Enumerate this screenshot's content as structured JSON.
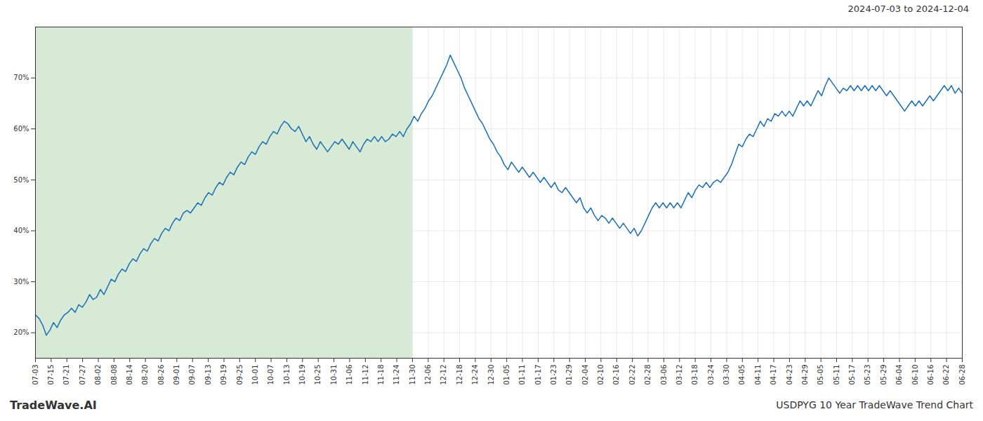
{
  "chart_data": {
    "type": "line",
    "title": "USDPYG 10 Year TradeWave Trend Chart",
    "subtitle": "2024-07-03 to 2024-12-04",
    "caption": "TradeWave.AI",
    "color": "#1a6fb5",
    "grid": true,
    "shade": {
      "x": [
        0,
        24
      ],
      "color": "#d6ead6"
    },
    "xlim": [
      0,
      59
    ],
    "xticks": [
      {
        "value": 0,
        "label": "07-03"
      },
      {
        "value": 1,
        "label": "07-15"
      },
      {
        "value": 2,
        "label": "07-21"
      },
      {
        "value": 3,
        "label": "07-27"
      },
      {
        "value": 4,
        "label": "08-02"
      },
      {
        "value": 5,
        "label": "08-08"
      },
      {
        "value": 6,
        "label": "08-14"
      },
      {
        "value": 7,
        "label": "08-20"
      },
      {
        "value": 8,
        "label": "08-26"
      },
      {
        "value": 9,
        "label": "09-01"
      },
      {
        "value": 10,
        "label": "09-07"
      },
      {
        "value": 11,
        "label": "09-13"
      },
      {
        "value": 12,
        "label": "09-19"
      },
      {
        "value": 13,
        "label": "09-25"
      },
      {
        "value": 14,
        "label": "10-01"
      },
      {
        "value": 15,
        "label": "10-07"
      },
      {
        "value": 16,
        "label": "10-13"
      },
      {
        "value": 17,
        "label": "10-19"
      },
      {
        "value": 18,
        "label": "10-25"
      },
      {
        "value": 19,
        "label": "10-31"
      },
      {
        "value": 20,
        "label": "11-06"
      },
      {
        "value": 21,
        "label": "11-12"
      },
      {
        "value": 22,
        "label": "11-18"
      },
      {
        "value": 23,
        "label": "11-24"
      },
      {
        "value": 24,
        "label": "11-30"
      },
      {
        "value": 25,
        "label": "12-06"
      },
      {
        "value": 26,
        "label": "12-12"
      },
      {
        "value": 27,
        "label": "12-18"
      },
      {
        "value": 28,
        "label": "12-24"
      },
      {
        "value": 29,
        "label": "12-30"
      },
      {
        "value": 30,
        "label": "01-05"
      },
      {
        "value": 31,
        "label": "01-11"
      },
      {
        "value": 32,
        "label": "01-17"
      },
      {
        "value": 33,
        "label": "01-23"
      },
      {
        "value": 34,
        "label": "01-29"
      },
      {
        "value": 35,
        "label": "02-04"
      },
      {
        "value": 36,
        "label": "02-10"
      },
      {
        "value": 37,
        "label": "02-16"
      },
      {
        "value": 38,
        "label": "02-22"
      },
      {
        "value": 39,
        "label": "02-28"
      },
      {
        "value": 40,
        "label": "03-06"
      },
      {
        "value": 41,
        "label": "03-12"
      },
      {
        "value": 42,
        "label": "03-18"
      },
      {
        "value": 43,
        "label": "03-24"
      },
      {
        "value": 44,
        "label": "03-30"
      },
      {
        "value": 45,
        "label": "04-05"
      },
      {
        "value": 46,
        "label": "04-11"
      },
      {
        "value": 47,
        "label": "04-17"
      },
      {
        "value": 48,
        "label": "04-23"
      },
      {
        "value": 49,
        "label": "04-29"
      },
      {
        "value": 50,
        "label": "05-05"
      },
      {
        "value": 51,
        "label": "05-11"
      },
      {
        "value": 52,
        "label": "05-17"
      },
      {
        "value": 53,
        "label": "05-23"
      },
      {
        "value": 54,
        "label": "05-29"
      },
      {
        "value": 55,
        "label": "06-04"
      },
      {
        "value": 56,
        "label": "06-10"
      },
      {
        "value": 57,
        "label": "06-16"
      },
      {
        "value": 58,
        "label": "06-22"
      },
      {
        "value": 59,
        "label": "06-28"
      }
    ],
    "ylim": [
      15,
      80
    ],
    "yticks": [
      {
        "value": 20,
        "label": "20%"
      },
      {
        "value": 30,
        "label": "30%"
      },
      {
        "value": 40,
        "label": "40%"
      },
      {
        "value": 50,
        "label": "50%"
      },
      {
        "value": 60,
        "label": "60%"
      },
      {
        "value": 70,
        "label": "70%"
      }
    ],
    "values": [
      23.5,
      22.8,
      21.5,
      19.5,
      20.5,
      22.0,
      21.0,
      22.5,
      23.5,
      24.0,
      24.8,
      24.0,
      25.5,
      25.0,
      26.0,
      27.5,
      26.5,
      27.0,
      28.5,
      27.5,
      29.0,
      30.5,
      30.0,
      31.5,
      32.5,
      32.0,
      33.5,
      34.5,
      34.0,
      35.5,
      36.5,
      36.0,
      37.5,
      38.5,
      38.0,
      39.5,
      40.5,
      40.0,
      41.5,
      42.5,
      42.0,
      43.5,
      44.0,
      43.5,
      44.5,
      45.5,
      45.0,
      46.5,
      47.5,
      47.0,
      48.5,
      49.5,
      49.0,
      50.5,
      51.5,
      51.0,
      52.5,
      53.5,
      53.0,
      54.5,
      55.5,
      55.0,
      56.5,
      57.5,
      57.0,
      58.5,
      59.5,
      59.0,
      60.5,
      61.5,
      61.0,
      60.0,
      59.5,
      60.5,
      59.0,
      57.5,
      58.5,
      57.0,
      56.0,
      57.5,
      56.5,
      55.5,
      56.5,
      57.5,
      57.0,
      58.0,
      57.0,
      56.0,
      57.5,
      56.5,
      55.5,
      57.0,
      58.0,
      57.5,
      58.5,
      57.5,
      58.5,
      57.5,
      58.0,
      59.0,
      58.5,
      59.5,
      58.5,
      60.0,
      61.0,
      62.5,
      61.5,
      63.0,
      64.0,
      65.5,
      66.5,
      68.0,
      69.5,
      71.0,
      72.5,
      74.5,
      73.0,
      71.5,
      70.0,
      68.0,
      66.5,
      65.0,
      63.5,
      62.0,
      61.0,
      59.5,
      58.0,
      57.0,
      55.5,
      54.5,
      53.0,
      52.0,
      53.5,
      52.5,
      51.5,
      52.5,
      51.5,
      50.5,
      51.5,
      50.5,
      49.5,
      50.5,
      49.5,
      48.5,
      49.5,
      48.0,
      47.5,
      48.5,
      47.5,
      46.5,
      45.5,
      46.5,
      44.5,
      43.5,
      44.5,
      43.0,
      42.0,
      43.0,
      42.5,
      41.5,
      42.5,
      41.5,
      40.5,
      41.5,
      40.5,
      39.5,
      40.5,
      39.0,
      40.0,
      41.5,
      43.0,
      44.5,
      45.5,
      44.5,
      45.5,
      44.5,
      45.5,
      44.5,
      45.5,
      44.5,
      46.0,
      47.5,
      46.5,
      48.0,
      49.0,
      48.5,
      49.5,
      48.5,
      49.5,
      50.0,
      49.5,
      50.5,
      51.5,
      53.0,
      55.0,
      57.0,
      56.5,
      58.0,
      59.0,
      58.5,
      60.0,
      61.5,
      60.5,
      62.0,
      61.5,
      63.0,
      62.5,
      63.5,
      62.5,
      63.5,
      62.5,
      64.0,
      65.5,
      64.5,
      65.5,
      64.5,
      66.0,
      67.5,
      66.5,
      68.5,
      70.0,
      69.0,
      68.0,
      67.0,
      68.0,
      67.5,
      68.5,
      67.5,
      68.5,
      67.5,
      68.5,
      67.5,
      68.5,
      67.5,
      68.5,
      67.5,
      66.5,
      67.5,
      66.5,
      65.5,
      64.5,
      63.5,
      64.5,
      65.5,
      64.5,
      65.5,
      64.5,
      65.5,
      66.5,
      65.5,
      66.5,
      67.5,
      68.5,
      67.5,
      68.5,
      67.0,
      68.0,
      67.0
    ]
  }
}
